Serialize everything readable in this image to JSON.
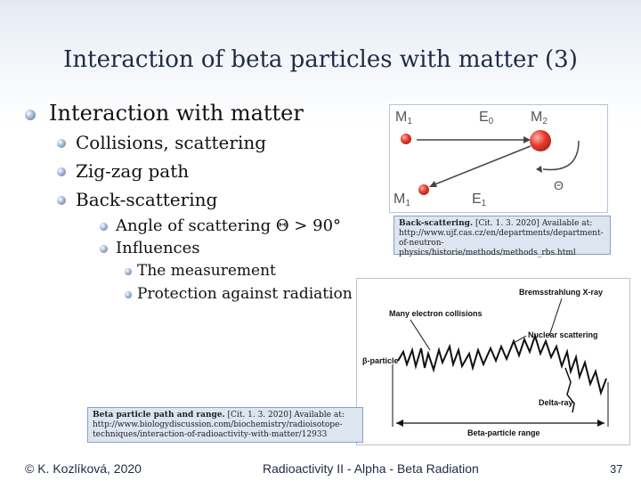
{
  "slide": {
    "title": "Interaction of beta particles with matter (3)",
    "bullet_1": "Interaction with matter",
    "sub_bullets": [
      "Collisions, scattering",
      "Zig-zag path",
      "Back-scattering"
    ],
    "sub_sub_bullets": [
      "Angle of scattering Θ > 90°",
      "Influences"
    ],
    "sub_sub_sub_bullets": [
      "The measurement",
      "Protection against radiation"
    ]
  },
  "figure_backscatter": {
    "labels": {
      "m1_top": "M",
      "m1_top_sub": "1",
      "e0": "E",
      "e0_sub": "0",
      "m2": "M",
      "m2_sub": "2",
      "theta": "Θ",
      "m1_bottom": "M",
      "m1_bottom_sub": "1",
      "e1": "E",
      "e1_sub": "1"
    },
    "caption_bold": "Back-scattering.",
    "caption_text": " [Cit. 1. 3. 2020] Available at: http://www.ujf.cas.cz/en/departments/department-of-neutron-physics/historie/methods/methods_rbs.html"
  },
  "figure_path": {
    "labels": {
      "bremsstrahlung": "Bremsstrahlung X-ray",
      "many_collisions": "Many electron collisions",
      "nuclear": "Nuclear scattering",
      "beta_particle": "β-particle",
      "delta_ray": "Delta-ray",
      "range": "Beta-particle range"
    },
    "caption_bold": "Beta particle path and range.",
    "caption_text": " [Cit. 1. 3. 2020] Available at: http://www.biologydiscussion.com/biochemistry/radioisotope-techniques/interaction-of-radioactivity-with-matter/12933"
  },
  "footer": {
    "author": "© K. Kozlíková, 2020",
    "course": "Radioactivity II - Alpha - Beta Radiation",
    "page": "37"
  },
  "colors": {
    "particle_red": "#e53b2e",
    "title": "#1f2a44"
  }
}
